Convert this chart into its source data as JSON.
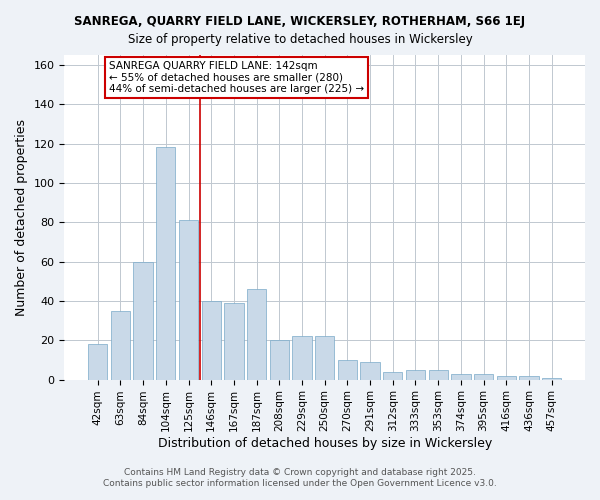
{
  "title1": "SANREGA, QUARRY FIELD LANE, WICKERSLEY, ROTHERHAM, S66 1EJ",
  "title2": "Size of property relative to detached houses in Wickersley",
  "xlabel": "Distribution of detached houses by size in Wickersley",
  "ylabel": "Number of detached properties",
  "categories": [
    "42sqm",
    "63sqm",
    "84sqm",
    "104sqm",
    "125sqm",
    "146sqm",
    "167sqm",
    "187sqm",
    "208sqm",
    "229sqm",
    "250sqm",
    "270sqm",
    "291sqm",
    "312sqm",
    "333sqm",
    "353sqm",
    "374sqm",
    "395sqm",
    "416sqm",
    "436sqm",
    "457sqm"
  ],
  "values": [
    18,
    35,
    60,
    118,
    81,
    40,
    39,
    46,
    20,
    22,
    22,
    10,
    9,
    4,
    5,
    5,
    3,
    3,
    2,
    2,
    1
  ],
  "bar_color": "#c9d9e8",
  "bar_edge_color": "#7aaac8",
  "vline_x": 4.5,
  "vline_color": "#cc0000",
  "annotation_lines": [
    "SANREGA QUARRY FIELD LANE: 142sqm",
    "← 55% of detached houses are smaller (280)",
    "44% of semi-detached houses are larger (225) →"
  ],
  "annotation_box_color": "#ffffff",
  "annotation_box_edge": "#cc0000",
  "ylim": [
    0,
    165
  ],
  "yticks": [
    0,
    20,
    40,
    60,
    80,
    100,
    120,
    140,
    160
  ],
  "footer1": "Contains HM Land Registry data © Crown copyright and database right 2025.",
  "footer2": "Contains public sector information licensed under the Open Government Licence v3.0.",
  "bg_color": "#eef2f7",
  "plot_bg_color": "#ffffff",
  "grid_color": "#c0c8d0"
}
